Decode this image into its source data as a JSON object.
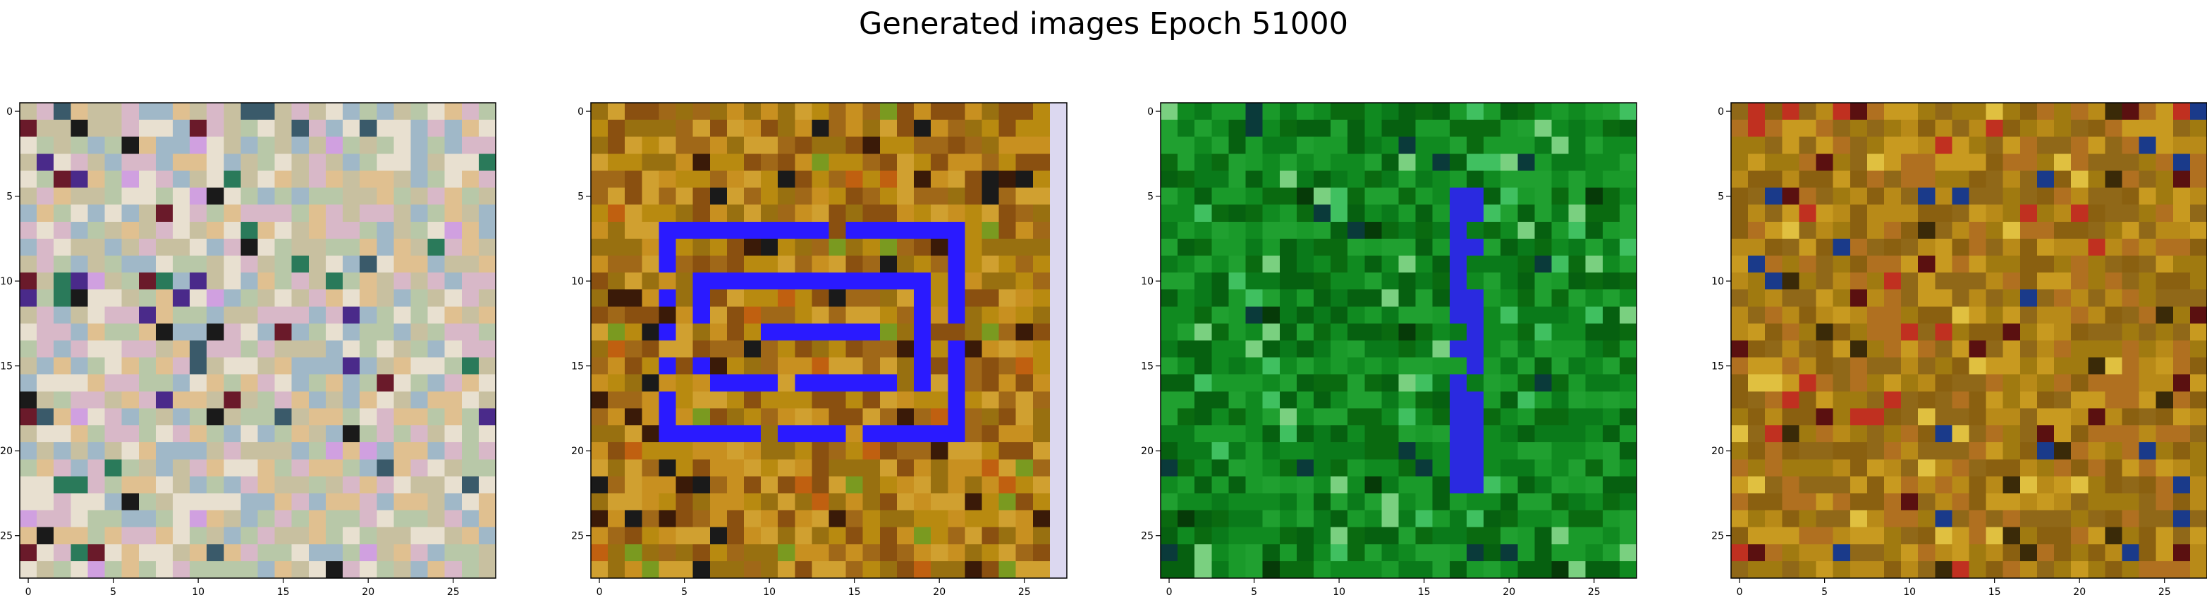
{
  "figure": {
    "title": "Generated images Epoch 51000"
  },
  "chart_data": [
    {
      "type": "heatmap",
      "title": "",
      "xlabel": "",
      "ylabel": "",
      "grid_size": [
        28,
        28
      ],
      "x_ticks": [
        0,
        5,
        10,
        15,
        20,
        25
      ],
      "y_ticks": [
        0,
        5,
        10,
        15,
        20,
        25
      ],
      "base_colors": [
        "#c8c0a0",
        "#d8b8c8",
        "#b8c8a8",
        "#e0c090",
        "#a0b8c8",
        "#e8e0d0"
      ],
      "accent_colors": [
        "#3a5a6a",
        "#6a1a2a",
        "#4a2a8a",
        "#1a1a1a",
        "#d0a0e0",
        "#2a7a5a"
      ],
      "overlay": "none",
      "overlay_color": ""
    },
    {
      "type": "heatmap",
      "title": "",
      "xlabel": "",
      "ylabel": "",
      "grid_size": [
        28,
        28
      ],
      "x_ticks": [
        0,
        5,
        10,
        15,
        20,
        25
      ],
      "y_ticks": [
        0,
        5,
        10,
        15,
        20,
        25
      ],
      "base_colors": [
        "#b88a10",
        "#c89020",
        "#a06818",
        "#8a5010",
        "#d0a030",
        "#987010"
      ],
      "accent_colors": [
        "#3a1a08",
        "#c06010",
        "#1a1a1a",
        "#7a9a20"
      ],
      "overlay": "rectangles",
      "overlay_color": "#2a1aff",
      "edge_column_color": "#dcd8f0"
    },
    {
      "type": "heatmap",
      "title": "",
      "xlabel": "",
      "ylabel": "",
      "grid_size": [
        28,
        28
      ],
      "x_ticks": [
        0,
        5,
        10,
        15,
        20,
        25
      ],
      "y_ticks": [
        0,
        5,
        10,
        15,
        20,
        25
      ],
      "base_colors": [
        "#0a7a1a",
        "#108a20",
        "#0a6a10",
        "#1a9a2a",
        "#066010",
        "#20a030"
      ],
      "accent_colors": [
        "#063a08",
        "#40c060",
        "#0a3a3a",
        "#7ad080"
      ],
      "overlay": "vertical-bar",
      "overlay_color": "#2a2ae0"
    },
    {
      "type": "heatmap",
      "title": "",
      "xlabel": "",
      "ylabel": "",
      "grid_size": [
        28,
        28
      ],
      "x_ticks": [
        0,
        5,
        10,
        15,
        20,
        25
      ],
      "y_ticks": [
        0,
        5,
        10,
        15,
        20,
        25
      ],
      "base_colors": [
        "#a07a10",
        "#b88a18",
        "#8a6010",
        "#c89a20",
        "#906818",
        "#b07020"
      ],
      "accent_colors": [
        "#5a1010",
        "#3a2a08",
        "#e0c040",
        "#c03020",
        "#1a3a8a"
      ],
      "overlay": "none",
      "overlay_color": ""
    }
  ]
}
